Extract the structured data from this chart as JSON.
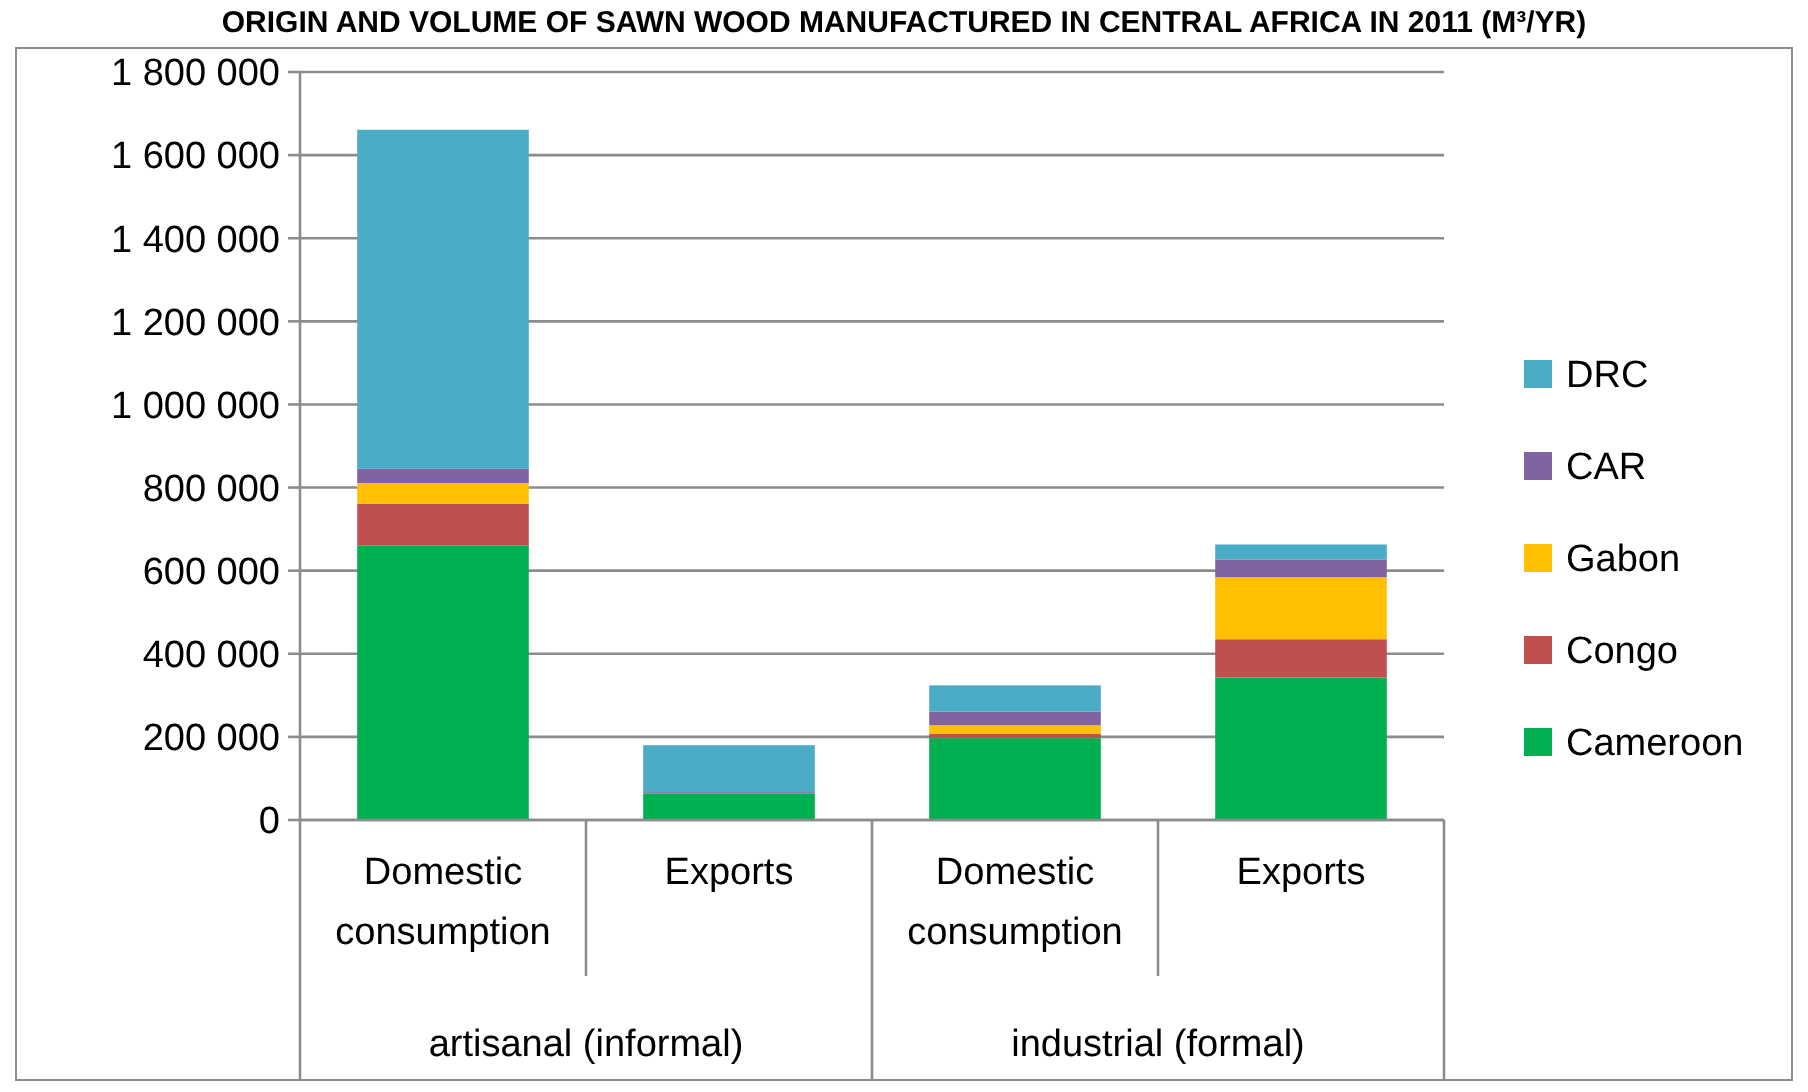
{
  "chart_data": {
    "type": "bar",
    "stacked": true,
    "title": "ORIGIN AND VOLUME OF SAWN WOOD MANUFACTURED IN CENTRAL AFRICA IN 2011 (M³/YR)",
    "categories": [
      "Domestic consumption",
      "Exports",
      "Domestic consumption",
      "Exports"
    ],
    "annotations": [
      "artisanal (informal)",
      "industrial (formal)"
    ],
    "series": [
      {
        "name": "Cameroon",
        "color": "#00b050",
        "values": [
          661000,
          64000,
          197000,
          343000
        ]
      },
      {
        "name": "Congo",
        "color": "#c0504d",
        "values": [
          100000,
          0,
          11000,
          92000
        ]
      },
      {
        "name": "Gabon",
        "color": "#ffc000",
        "values": [
          50000,
          0,
          20000,
          149000
        ]
      },
      {
        "name": "CAR",
        "color": "#8064a2",
        "values": [
          34000,
          3000,
          33000,
          43000
        ]
      },
      {
        "name": "DRC",
        "color": "#4bacc6",
        "values": [
          816000,
          113000,
          63000,
          36000
        ]
      }
    ],
    "ylim": [
      0,
      1800000
    ],
    "yticks": [
      0,
      {
        "value": 200000,
        "label": "200 000"
      },
      {
        "value": 400000,
        "label": "400 000"
      },
      {
        "value": 600000,
        "label": "600 000"
      },
      {
        "value": 800000,
        "label": "800 000"
      },
      {
        "value": 1000000,
        "label": "1 000 000"
      },
      {
        "value": 1200000,
        "label": "1 200 000"
      },
      {
        "value": 1400000,
        "label": "1 400 000"
      },
      {
        "value": 1600000,
        "label": "1 600 000"
      },
      {
        "value": 1800000,
        "label": "1 800 000"
      }
    ],
    "grid": "y",
    "legend": "right"
  }
}
